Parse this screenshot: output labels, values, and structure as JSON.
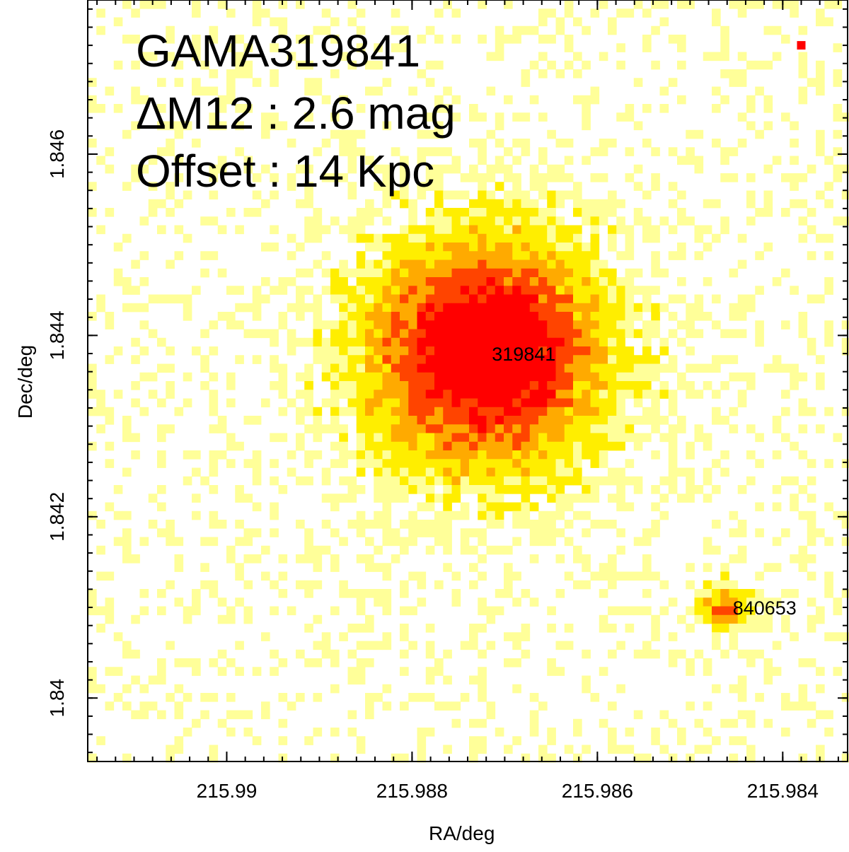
{
  "chart_data": {
    "type": "heatmap",
    "title_lines": [
      "GAMA319841",
      "ΔM12 : 2.6 mag",
      "Offset : 14 Kpc"
    ],
    "xlabel": "RA/deg",
    "ylabel": "Dec/deg",
    "x_axis": {
      "reversed": true,
      "xlim": [
        215.9915,
        215.9833
      ],
      "ticks": [
        215.99,
        215.988,
        215.986,
        215.984
      ],
      "tick_labels": [
        "215.99",
        "215.988",
        "215.986",
        "215.984"
      ]
    },
    "y_axis": {
      "ylim": [
        1.8393,
        1.8477
      ],
      "ticks": [
        1.84,
        1.842,
        1.844,
        1.846
      ],
      "tick_labels": [
        "1.84",
        "1.842",
        "1.844",
        "1.846"
      ]
    },
    "colormap": [
      "#ffffff",
      "#ffff99",
      "#ffee00",
      "#ffaa00",
      "#ff4400",
      "#ff0000"
    ],
    "sources": [
      {
        "id": "319841",
        "label": "319841",
        "ra": 215.9872,
        "dec": 1.8438,
        "peak": 1.0,
        "sigma_deg": 0.00085
      },
      {
        "id": "840653",
        "label": "840653",
        "ra": 215.9846,
        "dec": 1.841,
        "peak": 0.55,
        "sigma_deg": 0.00018
      }
    ],
    "bright_pixel": {
      "ra": 215.9838,
      "dec": 1.8472
    },
    "grid": false
  }
}
